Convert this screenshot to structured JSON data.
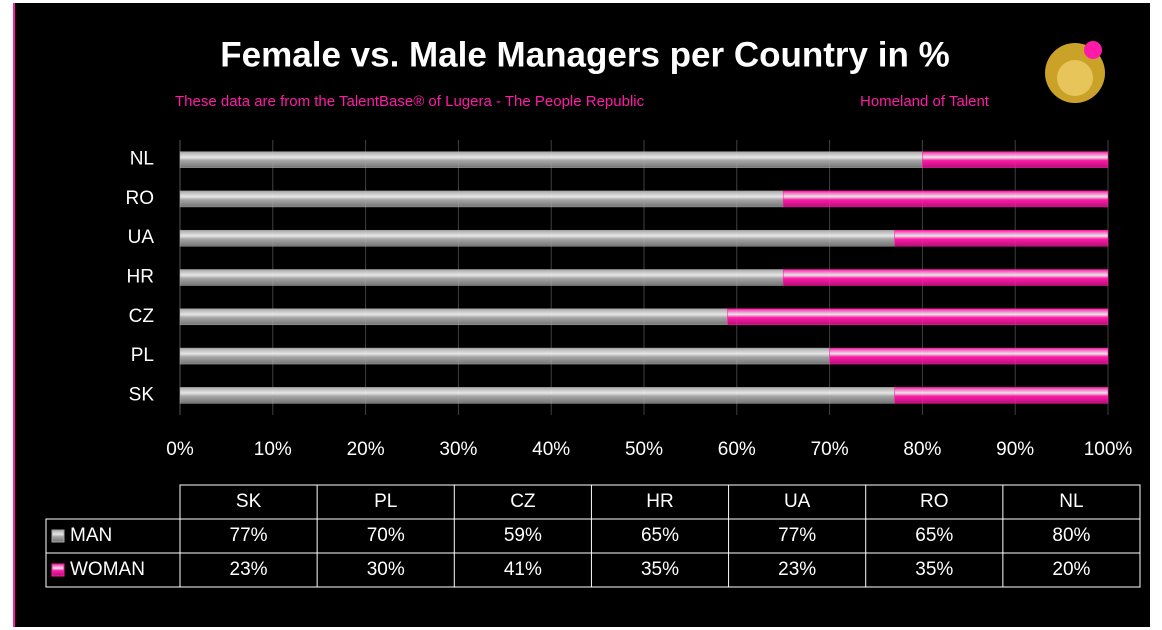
{
  "chart_data": {
    "type": "stacked-bar-horizontal",
    "title": "Female vs. Male Managers per Country in %",
    "subtitle": "These data are from the TalentBase® of Lugera - The People Republic",
    "annotation": "Homeland of Talent",
    "categories": [
      "SK",
      "PL",
      "CZ",
      "HR",
      "UA",
      "RO",
      "NL"
    ],
    "series": [
      {
        "name": "MAN",
        "color": "#a6a6a6",
        "values": [
          77,
          70,
          59,
          65,
          77,
          65,
          80
        ],
        "value_labels": [
          "77%",
          "70%",
          "59%",
          "65%",
          "77%",
          "65%",
          "80%"
        ]
      },
      {
        "name": "WOMAN",
        "color": "#ff1aa8",
        "values": [
          23,
          30,
          41,
          35,
          23,
          35,
          20
        ],
        "value_labels": [
          "23%",
          "30%",
          "41%",
          "35%",
          "23%",
          "35%",
          "20%"
        ]
      }
    ],
    "xlim": [
      0,
      100
    ],
    "xticks": [
      {
        "value": 0,
        "label": "0%"
      },
      {
        "value": 10,
        "label": "10%"
      },
      {
        "value": 20,
        "label": "20%"
      },
      {
        "value": 30,
        "label": "30%"
      },
      {
        "value": 40,
        "label": "40%"
      },
      {
        "value": 50,
        "label": "50%"
      },
      {
        "value": 60,
        "label": "60%"
      },
      {
        "value": 70,
        "label": "70%"
      },
      {
        "value": 80,
        "label": "80%"
      },
      {
        "value": 90,
        "label": "90%"
      },
      {
        "value": 100,
        "label": "100%"
      }
    ],
    "grid": true
  }
}
